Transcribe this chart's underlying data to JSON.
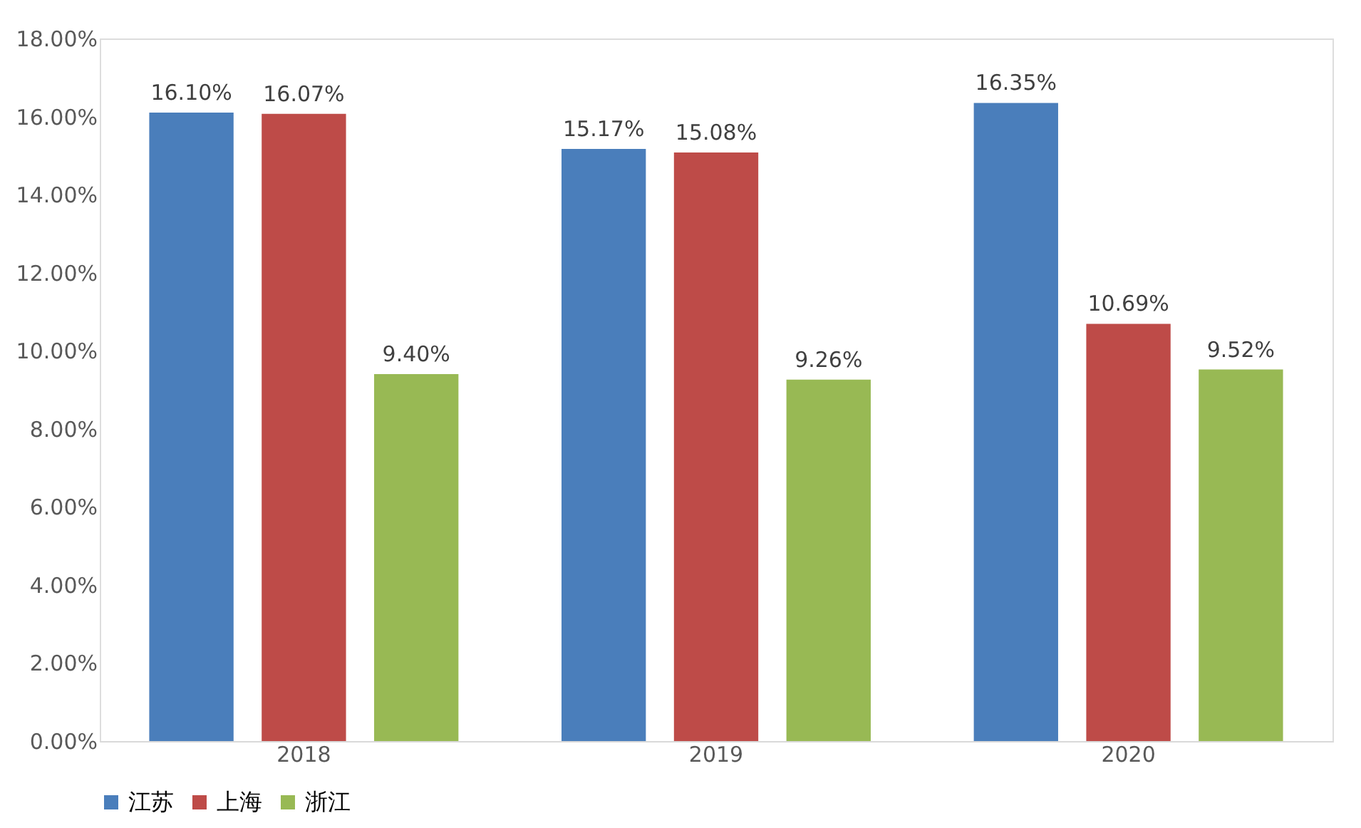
{
  "chart_data": {
    "type": "bar",
    "categories": [
      "2018",
      "2019",
      "2020"
    ],
    "series": [
      {
        "name": "江苏",
        "color": "#4a7ebb",
        "values": [
          16.1,
          15.17,
          16.35
        ],
        "value_labels": [
          "16.10%",
          "15.17%",
          "16.35%"
        ]
      },
      {
        "name": "上海",
        "color": "#be4b48",
        "values": [
          16.07,
          15.08,
          10.69
        ],
        "value_labels": [
          "16.07%",
          "15.08%",
          "10.69%"
        ]
      },
      {
        "name": "浙江",
        "color": "#98b954",
        "values": [
          9.4,
          9.26,
          9.52
        ],
        "value_labels": [
          "9.40%",
          "9.26%",
          "9.52%"
        ]
      }
    ],
    "ylim": [
      0,
      18
    ],
    "yticks": [
      {
        "value": 0,
        "label": "0.00%"
      },
      {
        "value": 2,
        "label": "2.00%"
      },
      {
        "value": 4,
        "label": "4.00%"
      },
      {
        "value": 6,
        "label": "6.00%"
      },
      {
        "value": 8,
        "label": "8.00%"
      },
      {
        "value": 10,
        "label": "10.00%"
      },
      {
        "value": 12,
        "label": "12.00%"
      },
      {
        "value": 14,
        "label": "14.00%"
      },
      {
        "value": 16,
        "label": "16.00%"
      },
      {
        "value": 18,
        "label": "18.00%"
      }
    ],
    "grid": false,
    "legend": "bottom"
  }
}
